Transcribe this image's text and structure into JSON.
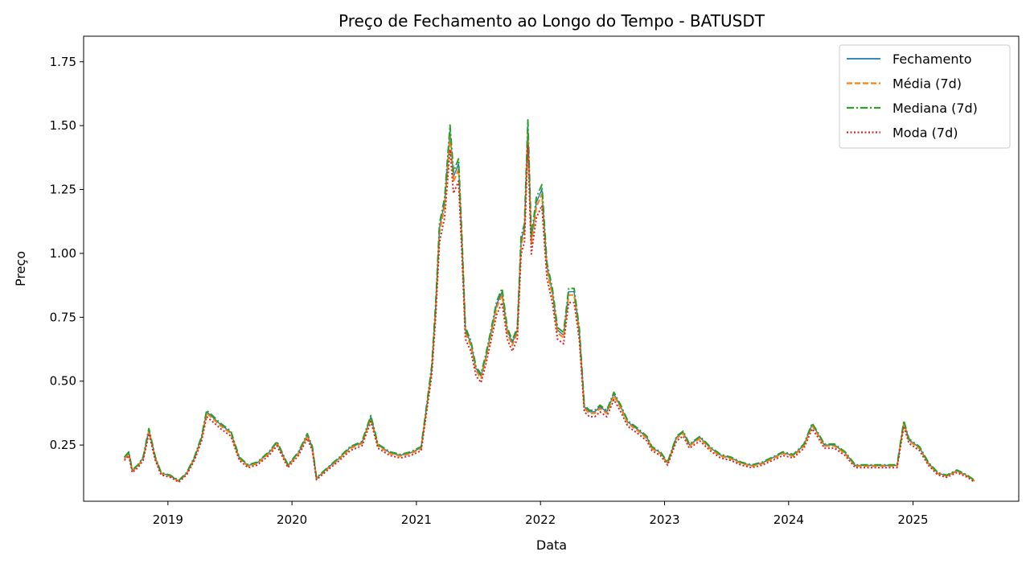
{
  "chart_data": {
    "type": "line",
    "title": "Preço de Fechamento ao Longo do Tempo - BATUSDT",
    "xlabel": "Data",
    "ylabel": "Preço",
    "xlim": [
      "2018-04-28",
      "2025-11-08"
    ],
    "ylim": [
      0.03,
      1.85
    ],
    "x_ticks": [
      "2019",
      "2020",
      "2021",
      "2022",
      "2023",
      "2024",
      "2025"
    ],
    "y_ticks": [
      "0.25",
      "0.50",
      "0.75",
      "1.00",
      "1.25",
      "1.50",
      "1.75"
    ],
    "legend_position": "top-right",
    "grid": false,
    "series": [
      {
        "name": "Fechamento",
        "color": "#1f77b4",
        "style": "solid"
      },
      {
        "name": "Média (7d)",
        "color": "#ff7f0e",
        "style": "dashed"
      },
      {
        "name": "Mediana (7d)",
        "color": "#2ca02c",
        "style": "dashdot"
      },
      {
        "name": "Moda (7d)",
        "color": "#d62728",
        "style": "dotted"
      }
    ],
    "points": [
      [
        "2018-08-26",
        0.2
      ],
      [
        "2018-09-08",
        0.22
      ],
      [
        "2018-09-18",
        0.15
      ],
      [
        "2018-10-05",
        0.17
      ],
      [
        "2018-10-20",
        0.2
      ],
      [
        "2018-11-06",
        0.31
      ],
      [
        "2018-11-25",
        0.2
      ],
      [
        "2018-12-12",
        0.14
      ],
      [
        "2019-01-08",
        0.13
      ],
      [
        "2019-02-02",
        0.11
      ],
      [
        "2019-02-25",
        0.14
      ],
      [
        "2019-03-20",
        0.2
      ],
      [
        "2019-04-10",
        0.28
      ],
      [
        "2019-04-25",
        0.38
      ],
      [
        "2019-05-12",
        0.36
      ],
      [
        "2019-06-05",
        0.33
      ],
      [
        "2019-07-05",
        0.3
      ],
      [
        "2019-07-30",
        0.2
      ],
      [
        "2019-08-25",
        0.17
      ],
      [
        "2019-09-20",
        0.18
      ],
      [
        "2019-10-25",
        0.22
      ],
      [
        "2019-11-18",
        0.26
      ],
      [
        "2019-12-20",
        0.17
      ],
      [
        "2020-01-20",
        0.22
      ],
      [
        "2020-02-15",
        0.29
      ],
      [
        "2020-03-01",
        0.24
      ],
      [
        "2020-03-13",
        0.12
      ],
      [
        "2020-04-15",
        0.16
      ],
      [
        "2020-05-20",
        0.2
      ],
      [
        "2020-06-20",
        0.24
      ],
      [
        "2020-07-25",
        0.26
      ],
      [
        "2020-08-20",
        0.36
      ],
      [
        "2020-09-10",
        0.25
      ],
      [
        "2020-10-15",
        0.22
      ],
      [
        "2020-11-15",
        0.21
      ],
      [
        "2020-12-15",
        0.22
      ],
      [
        "2021-01-15",
        0.24
      ],
      [
        "2021-02-05",
        0.45
      ],
      [
        "2021-02-15",
        0.55
      ],
      [
        "2021-02-27",
        0.8
      ],
      [
        "2021-03-10",
        1.1
      ],
      [
        "2021-03-25",
        1.2
      ],
      [
        "2021-04-10",
        1.48
      ],
      [
        "2021-04-20",
        1.3
      ],
      [
        "2021-05-05",
        1.35
      ],
      [
        "2021-05-15",
        1.05
      ],
      [
        "2021-05-25",
        0.7
      ],
      [
        "2021-06-10",
        0.65
      ],
      [
        "2021-06-25",
        0.55
      ],
      [
        "2021-07-10",
        0.52
      ],
      [
        "2021-07-25",
        0.6
      ],
      [
        "2021-08-10",
        0.7
      ],
      [
        "2021-08-25",
        0.8
      ],
      [
        "2021-09-10",
        0.85
      ],
      [
        "2021-09-25",
        0.7
      ],
      [
        "2021-10-10",
        0.65
      ],
      [
        "2021-10-25",
        0.7
      ],
      [
        "2021-11-05",
        1.05
      ],
      [
        "2021-11-15",
        1.1
      ],
      [
        "2021-11-25",
        1.5
      ],
      [
        "2021-12-05",
        1.05
      ],
      [
        "2021-12-20",
        1.2
      ],
      [
        "2022-01-05",
        1.25
      ],
      [
        "2022-01-20",
        0.95
      ],
      [
        "2022-02-05",
        0.85
      ],
      [
        "2022-02-20",
        0.7
      ],
      [
        "2022-03-10",
        0.68
      ],
      [
        "2022-03-25",
        0.85
      ],
      [
        "2022-04-10",
        0.85
      ],
      [
        "2022-04-25",
        0.7
      ],
      [
        "2022-05-10",
        0.4
      ],
      [
        "2022-05-25",
        0.38
      ],
      [
        "2022-06-10",
        0.38
      ],
      [
        "2022-06-25",
        0.4
      ],
      [
        "2022-07-15",
        0.38
      ],
      [
        "2022-08-05",
        0.45
      ],
      [
        "2022-08-25",
        0.4
      ],
      [
        "2022-09-15",
        0.34
      ],
      [
        "2022-10-15",
        0.31
      ],
      [
        "2022-11-10",
        0.28
      ],
      [
        "2022-11-25",
        0.24
      ],
      [
        "2022-12-20",
        0.22
      ],
      [
        "2023-01-10",
        0.18
      ],
      [
        "2023-02-05",
        0.28
      ],
      [
        "2023-02-25",
        0.3
      ],
      [
        "2023-03-15",
        0.25
      ],
      [
        "2023-04-15",
        0.28
      ],
      [
        "2023-05-15",
        0.24
      ],
      [
        "2023-06-15",
        0.21
      ],
      [
        "2023-07-15",
        0.2
      ],
      [
        "2023-08-15",
        0.18
      ],
      [
        "2023-09-15",
        0.17
      ],
      [
        "2023-10-15",
        0.18
      ],
      [
        "2023-11-15",
        0.2
      ],
      [
        "2023-12-15",
        0.22
      ],
      [
        "2024-01-15",
        0.21
      ],
      [
        "2024-02-15",
        0.25
      ],
      [
        "2024-03-10",
        0.33
      ],
      [
        "2024-03-25",
        0.3
      ],
      [
        "2024-04-15",
        0.25
      ],
      [
        "2024-05-15",
        0.25
      ],
      [
        "2024-06-15",
        0.22
      ],
      [
        "2024-07-15",
        0.17
      ],
      [
        "2024-08-15",
        0.17
      ],
      [
        "2024-09-15",
        0.17
      ],
      [
        "2024-10-15",
        0.17
      ],
      [
        "2024-11-15",
        0.17
      ],
      [
        "2024-12-05",
        0.34
      ],
      [
        "2024-12-20",
        0.27
      ],
      [
        "2025-01-20",
        0.24
      ],
      [
        "2025-02-15",
        0.18
      ],
      [
        "2025-03-15",
        0.14
      ],
      [
        "2025-04-10",
        0.13
      ],
      [
        "2025-05-10",
        0.15
      ],
      [
        "2025-06-10",
        0.13
      ],
      [
        "2025-07-01",
        0.11
      ]
    ]
  }
}
